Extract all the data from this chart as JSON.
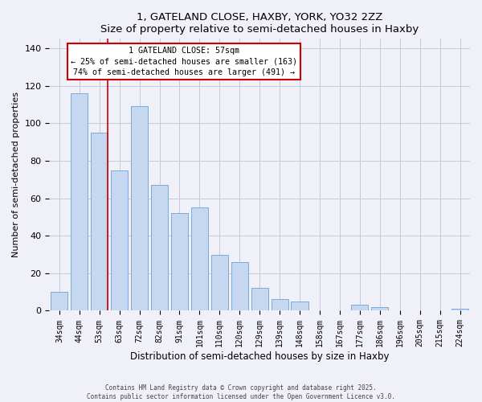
{
  "title": "1, GATELAND CLOSE, HAXBY, YORK, YO32 2ZZ",
  "subtitle": "Size of property relative to semi-detached houses in Haxby",
  "xlabel": "Distribution of semi-detached houses by size in Haxby",
  "ylabel": "Number of semi-detached properties",
  "categories": [
    "34sqm",
    "44sqm",
    "53sqm",
    "63sqm",
    "72sqm",
    "82sqm",
    "91sqm",
    "101sqm",
    "110sqm",
    "120sqm",
    "129sqm",
    "139sqm",
    "148sqm",
    "158sqm",
    "167sqm",
    "177sqm",
    "186sqm",
    "196sqm",
    "205sqm",
    "215sqm",
    "224sqm"
  ],
  "values": [
    10,
    116,
    95,
    75,
    109,
    67,
    52,
    55,
    30,
    26,
    12,
    6,
    5,
    0,
    0,
    3,
    2,
    0,
    0,
    0,
    1
  ],
  "bar_color": "#c5d8f0",
  "bar_edge_color": "#7aabdb",
  "vline_color": "#cc0000",
  "annotation_title": "1 GATELAND CLOSE: 57sqm",
  "annotation_line1": "← 25% of semi-detached houses are smaller (163)",
  "annotation_line2": "74% of semi-detached houses are larger (491) →",
  "annotation_box_color": "#cc0000",
  "ylim": [
    0,
    145
  ],
  "yticks": [
    0,
    20,
    40,
    60,
    80,
    100,
    120,
    140
  ],
  "footer1": "Contains HM Land Registry data © Crown copyright and database right 2025.",
  "footer2": "Contains public sector information licensed under the Open Government Licence v3.0.",
  "background_color": "#f0f0f8",
  "grid_color": "#c8c8dc"
}
